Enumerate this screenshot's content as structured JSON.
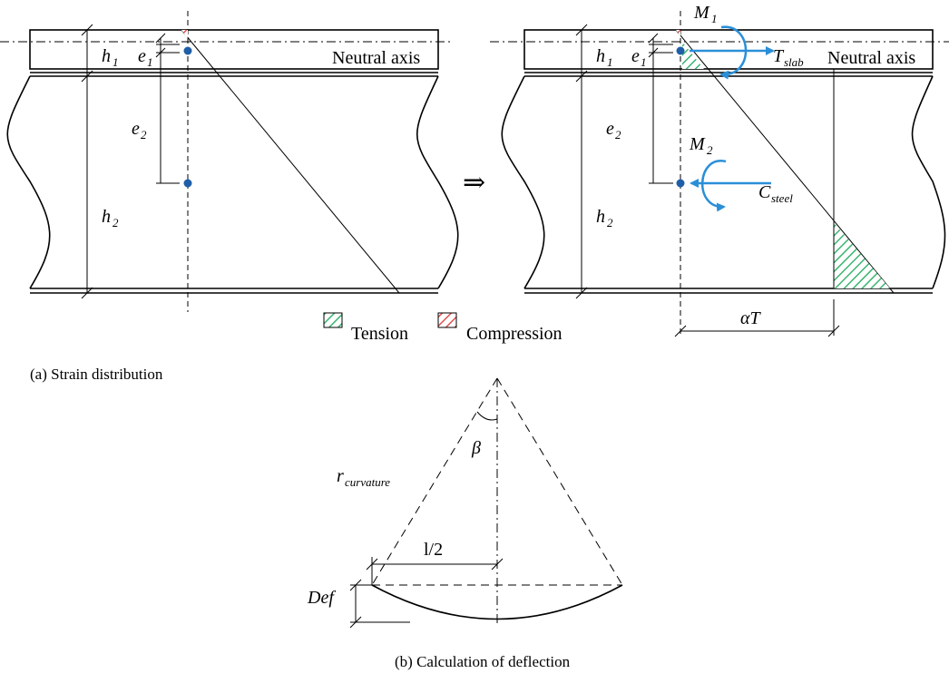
{
  "labels": {
    "h1": "h",
    "h1_sub": "1",
    "h2": "h",
    "h2_sub": "2",
    "e1": "e",
    "e1_sub": "1",
    "e2": "e",
    "e2_sub": "2",
    "neutral_axis": "Neutral axis",
    "M1": "M",
    "M1_sub": "1",
    "M2": "M",
    "M2_sub": "2",
    "T": "T",
    "T_sub": "slab",
    "C": "C",
    "C_sub": "steel",
    "alphaT": "αT",
    "arrow": "⇒",
    "beta": "β",
    "r": "r",
    "r_sub": "curvature",
    "l_half": "l/2",
    "def": "Def"
  },
  "legend": {
    "tension": "Tension",
    "compression": "Compression"
  },
  "captions": {
    "a": "(a) Strain distribution",
    "b": "(b) Calculation of deflection"
  },
  "colors": {
    "tension": "#3cb371",
    "compression": "#e05050",
    "marker": "#1f5fa8",
    "force": "#2a8fd8"
  }
}
